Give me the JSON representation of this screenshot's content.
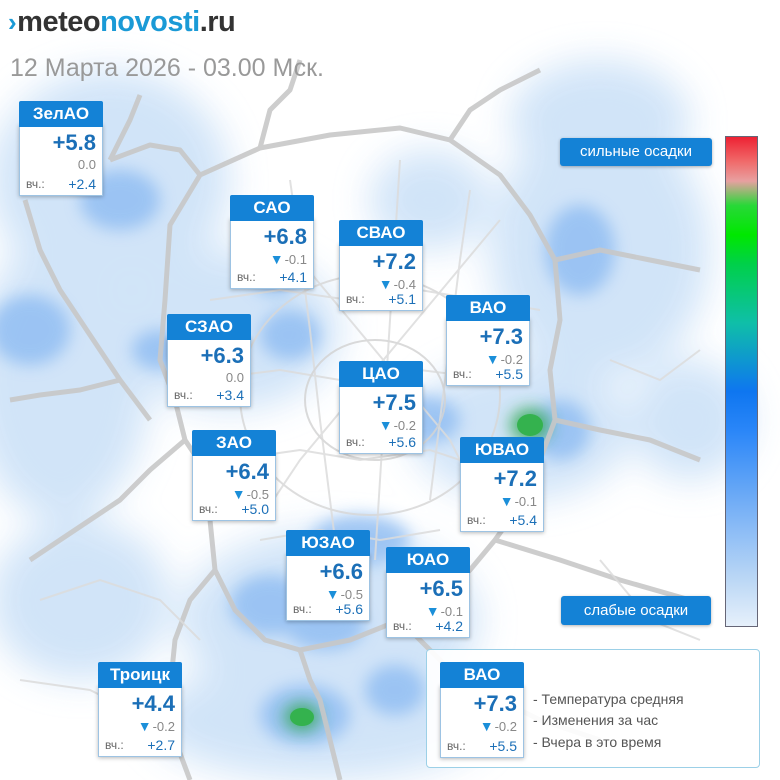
{
  "brand": {
    "part1": "meteo",
    "part2": "novosti",
    "part3": ".ru"
  },
  "date_label": "12 Марта 2026 - 03.00 Мск.",
  "districts": {
    "zelao": {
      "name": "ЗелАО",
      "temp": "+5.8",
      "change": "0.0",
      "trend": "flat",
      "yesterday_label": "вч.:",
      "yesterday": "+2.4"
    },
    "sao": {
      "name": "САО",
      "temp": "+6.8",
      "change": "-0.1",
      "trend": "down",
      "yesterday_label": "вч.:",
      "yesterday": "+4.1"
    },
    "svao": {
      "name": "СВАО",
      "temp": "+7.2",
      "change": "-0.4",
      "trend": "down",
      "yesterday_label": "вч.:",
      "yesterday": "+5.1"
    },
    "vao": {
      "name": "ВАО",
      "temp": "+7.3",
      "change": "-0.2",
      "trend": "down",
      "yesterday_label": "вч.:",
      "yesterday": "+5.5"
    },
    "szao": {
      "name": "СЗАО",
      "temp": "+6.3",
      "change": "0.0",
      "trend": "flat",
      "yesterday_label": "вч.:",
      "yesterday": "+3.4"
    },
    "tsao": {
      "name": "ЦАО",
      "temp": "+7.5",
      "change": "-0.2",
      "trend": "down",
      "yesterday_label": "вч.:",
      "yesterday": "+5.6"
    },
    "zao": {
      "name": "ЗАО",
      "temp": "+6.4",
      "change": "-0.5",
      "trend": "down",
      "yesterday_label": "вч.:",
      "yesterday": "+5.0"
    },
    "yuvao": {
      "name": "ЮВАО",
      "temp": "+7.2",
      "change": "-0.1",
      "trend": "down",
      "yesterday_label": "вч.:",
      "yesterday": "+5.4"
    },
    "yuzao": {
      "name": "ЮЗАО",
      "temp": "+6.6",
      "change": "-0.5",
      "trend": "down",
      "yesterday_label": "вч.:",
      "yesterday": "+5.6"
    },
    "yuao": {
      "name": "ЮАО",
      "temp": "+6.5",
      "change": "-0.1",
      "trend": "down",
      "yesterday_label": "вч.:",
      "yesterday": "+4.2"
    },
    "troitsk": {
      "name": "Троицк",
      "temp": "+4.4",
      "change": "-0.2",
      "trend": "down",
      "yesterday_label": "вч.:",
      "yesterday": "+2.7"
    }
  },
  "scale": {
    "strong_label": "сильные осадки",
    "weak_label": "слабые осадки",
    "colors": [
      "#ee2233",
      "#e8a0a0",
      "#00e800",
      "#0e76f0",
      "#e6f0fb"
    ]
  },
  "legend": {
    "sample": {
      "name": "ВАО",
      "temp": "+7.3",
      "change": "-0.2",
      "trend": "down",
      "yesterday_label": "вч.:",
      "yesterday": "+5.5"
    },
    "line1": "- Температура средняя",
    "line2": "- Изменения за час",
    "line3": "- Вчера в это время"
  },
  "colors": {
    "accent": "#1482d6",
    "temp_text": "#1b6fb7",
    "precip_light": "#c5dcf6",
    "precip_medium": "#6aa9ef",
    "precip_heavy": "#2fa84f"
  }
}
